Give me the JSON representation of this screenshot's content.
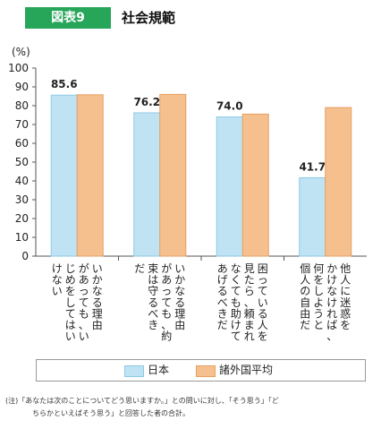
{
  "header": {
    "badge": "図表9",
    "title": "社会規範"
  },
  "note": {
    "line1": "(注)「あなたは次のことについてどう思いますか。」との問いに対し、「そう思う」「ど",
    "line2": "ちらかといえばそう思う」と回答した者の合計。"
  },
  "colors": {
    "badge": "#27a65a",
    "japan": "#bfe3f3",
    "japan_edge": "#8ec9e6",
    "other": "#f5c08e",
    "other_edge": "#e6a062"
  },
  "chart_data": {
    "type": "bar",
    "unit": "(%)",
    "ylim": [
      0,
      100
    ],
    "yticks": [
      0,
      10,
      20,
      30,
      40,
      50,
      60,
      70,
      80,
      90,
      100
    ],
    "categories": [
      "いかなる理由があっても、いじめをしてはいけない",
      "いかなる理由があっても、約束は守るべきだ",
      "困っている人を見たら、頼まれなくても助けてあげるべきだ",
      "他人に迷惑をかけなければ、何をしようと個人の自由だ"
    ],
    "category_lines": [
      [
        "いかなる理由",
        "があっても、い",
        "じめをしてはい",
        "けない"
      ],
      [
        "いかなる理由",
        "があっても、約",
        "束は守るべき",
        "だ"
      ],
      [
        "困っている人を",
        "見たら、頼まれ",
        "なくても助けて",
        "あげるべきだ"
      ],
      [
        "他人に迷惑を",
        "かけなければ、",
        "何をしようと",
        "個人の自由だ"
      ]
    ],
    "series": [
      {
        "name": "日本",
        "values": [
          85.6,
          76.2,
          74.0,
          41.7
        ],
        "labels": [
          "85.6",
          "76.2",
          "74.0",
          "41.7"
        ]
      },
      {
        "name": "諸外国平均",
        "values": [
          85.8,
          86.0,
          75.5,
          79.0
        ]
      }
    ],
    "legend_position": "bottom",
    "grid": false
  }
}
